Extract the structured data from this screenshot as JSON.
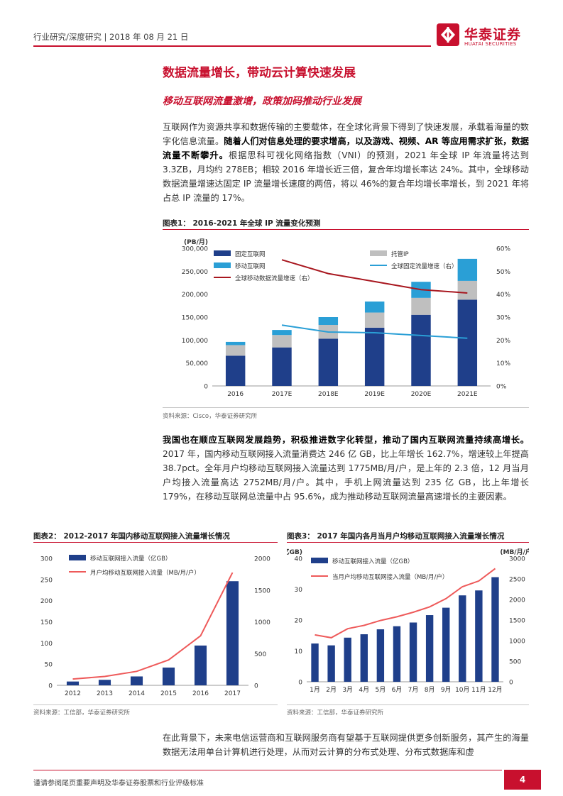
{
  "header": {
    "text": "行业研究/深度研究 | 2018 年 08 月 21 日"
  },
  "logo": {
    "cn": "华泰证券",
    "en": "HUATAI SECURITIES"
  },
  "section_title": "数据流量增长，带动云计算快速发展",
  "subsection_title": "移动互联网流量激增，政策加码推动行业发展",
  "para1": {
    "t1": "互联网作为资源共享和数据传输的主要载体，在全球化背景下得到了快速发展，承载着海量的数字化信息流量。",
    "b1": "随着人们对信息处理的要求增高，以及游戏、视频、AR 等应用需求扩张，数据流量不断攀升。",
    "t2": "根据思科可视化网络指数（VNI）的预测，2021 年全球 IP 年流量将达到 3.3ZB，月均约 278EB；相较 2016 年增长近三倍，复合年均增长率达 24%。其中，全球移动数据流量增速达固定 IP 流量增长速度的两倍，将以 46%的复合年均增长率增长，到 2021 年将占总 IP 流量的 17%。"
  },
  "para2": {
    "b1": "我国也在顺应互联网发展趋势，积极推进数字化转型，推动了国内互联网流量持续高增长。",
    "t1": "2017 年，国内移动互联网接入流量消费达 246 亿 GB，比上年增长 162.7%，增速较上年提高 38.7pct。全年月户均移动互联网接入流量达到 1775MB/月/户，是上年的 2.3 倍，12 月当月户均接入流量高达 2752MB/月/户。其中，手机上网流量达到 235 亿 GB，比上年增长 179%，在移动互联网总流量中占 95.6%，成为推动移动互联网流量高速增长的主要因素。"
  },
  "para3": {
    "t1": "在此背景下，未来电信运营商和互联网服务商有望基于互联网提供更多创新服务，其产生的海量数据无法用单台计算机进行处理，从而对云计算的分布式处理、分布式数据库和虚"
  },
  "fig1": {
    "title": "图表1：  2016-2021 年全球 IP 流量变化预测",
    "source": "资料来源：Cisco，华泰证券研究所"
  },
  "fig2": {
    "title": "图表2：  2012-2017 年国内移动互联网接入流量增长情况",
    "source": "资料来源：工信部，华泰证券研究所"
  },
  "fig3": {
    "title": "图表3：  2017 年国内各月当月户均移动互联网接入流量增长情况",
    "source": "资料来源：工信部，华泰证券研究所"
  },
  "chart_data": [
    {
      "type": "bar",
      "stacked": true,
      "categories": [
        "2016",
        "2017E",
        "2018E",
        "2019E",
        "2020E",
        "2021E"
      ],
      "series": [
        {
          "name": "固定互联网",
          "values": [
            66000,
            84000,
            103000,
            127000,
            155000,
            188000
          ],
          "color": "#1f3f8a"
        },
        {
          "name": "托管IP",
          "values": [
            23000,
            27000,
            30000,
            33000,
            37000,
            41000
          ],
          "color": "#bfbfbf"
        },
        {
          "name": "移动互联网",
          "values": [
            7000,
            11000,
            17000,
            24000,
            35000,
            48000
          ],
          "color": "#2a9fd6"
        }
      ],
      "lines": [
        {
          "name": "全球固定流量增速（右）",
          "categories": [
            "2017E",
            "2018E",
            "2019E",
            "2020E",
            "2021E"
          ],
          "values": [
            26.5,
            23.5,
            23.2,
            22.0,
            20.8
          ],
          "color": "#2a9fd6"
        },
        {
          "name": "全球移动数据流量增速（右）",
          "categories": [
            "2017E",
            "2018E",
            "2019E",
            "2020E",
            "2021E"
          ],
          "values": [
            55.0,
            49.0,
            45.5,
            42.0,
            40.5
          ],
          "color": "#a8171f"
        }
      ],
      "yunit": "(PB/月)",
      "ylim": [
        0,
        300000
      ],
      "yticks": [
        "0",
        "50,000",
        "100,000",
        "150,000",
        "200,000",
        "250,000",
        "300,000"
      ],
      "y2lim": [
        0,
        60
      ],
      "y2ticks": [
        "0%",
        "10%",
        "20%",
        "30%",
        "40%",
        "50%",
        "60%"
      ]
    },
    {
      "type": "bar",
      "categories": [
        "2012",
        "2013",
        "2014",
        "2015",
        "2016",
        "2017"
      ],
      "series": [
        {
          "name": "移动互联网接入流量（亿GB）",
          "values": [
            9,
            13,
            21,
            42,
            94,
            246
          ],
          "color": "#1f3f8a"
        }
      ],
      "lines": [
        {
          "name": "月户均移动互联网接入流量（MB/月/户）",
          "values": [
            100,
            140,
            220,
            400,
            780,
            1775
          ],
          "color": "#ee5a5a"
        }
      ],
      "ylim": [
        0,
        300
      ],
      "yticks": [
        "0",
        "50",
        "100",
        "150",
        "200",
        "250",
        "300"
      ],
      "y2lim": [
        0,
        2000
      ],
      "y2ticks": [
        "0",
        "500",
        "1000",
        "1500",
        "2000"
      ]
    },
    {
      "type": "bar",
      "categories": [
        "1月",
        "2月",
        "3月",
        "4月",
        "5月",
        "6月",
        "7月",
        "8月",
        "9月",
        "10月",
        "11月",
        "12月"
      ],
      "series": [
        {
          "name": "移动互联网接入流量（亿GB）",
          "values": [
            12.4,
            11.8,
            14.3,
            15.4,
            17.0,
            18.0,
            19.2,
            21.6,
            24.0,
            28.0,
            29.6,
            33.9
          ],
          "color": "#1f3f8a"
        }
      ],
      "lines": [
        {
          "name": "当月户均移动互联网接入流量（MB/月/户）",
          "values": [
            1140,
            1070,
            1290,
            1370,
            1490,
            1580,
            1690,
            1820,
            2020,
            2310,
            2450,
            2752
          ],
          "color": "#ee5a5a"
        }
      ],
      "yunit": "(亿GB)",
      "y2unit": "(MB/月/户)",
      "ylim": [
        0,
        40
      ],
      "yticks": [
        "0",
        "10",
        "20",
        "30",
        "40"
      ],
      "y2lim": [
        0,
        3000
      ],
      "y2ticks": [
        "0",
        "500",
        "1000",
        "1500",
        "2000",
        "2500",
        "3000"
      ]
    }
  ],
  "footer": {
    "text": "谨请参阅尾页重要声明及华泰证券股票和行业评级标准",
    "page": "4"
  }
}
